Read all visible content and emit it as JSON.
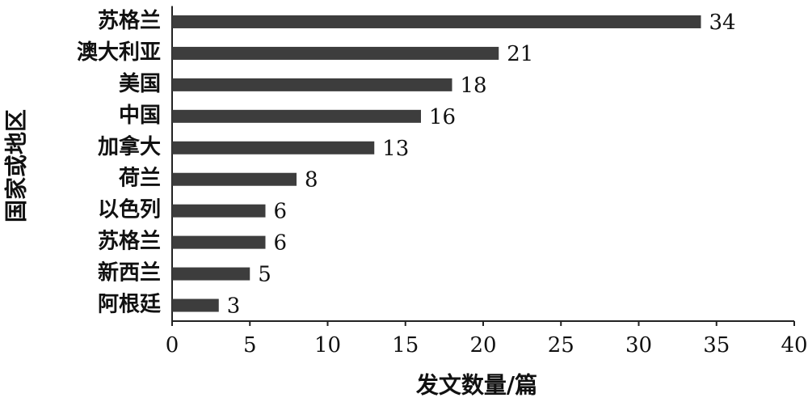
{
  "chart_data": {
    "type": "bar",
    "orientation": "horizontal",
    "x_label": "发文数量/篇",
    "y_label": "国家或地区",
    "categories": [
      "苏格兰",
      "澳大利亚",
      "美国",
      "中国",
      "加拿大",
      "荷兰",
      "以色列",
      "苏格兰",
      "新西兰",
      "阿根廷"
    ],
    "values": [
      34,
      21,
      18,
      16,
      13,
      8,
      6,
      6,
      5,
      3
    ],
    "color": "#3d3d3d",
    "xlim": [
      0,
      40
    ],
    "xticks": [
      0,
      5,
      10,
      15,
      20,
      25,
      30,
      35,
      40
    ]
  }
}
